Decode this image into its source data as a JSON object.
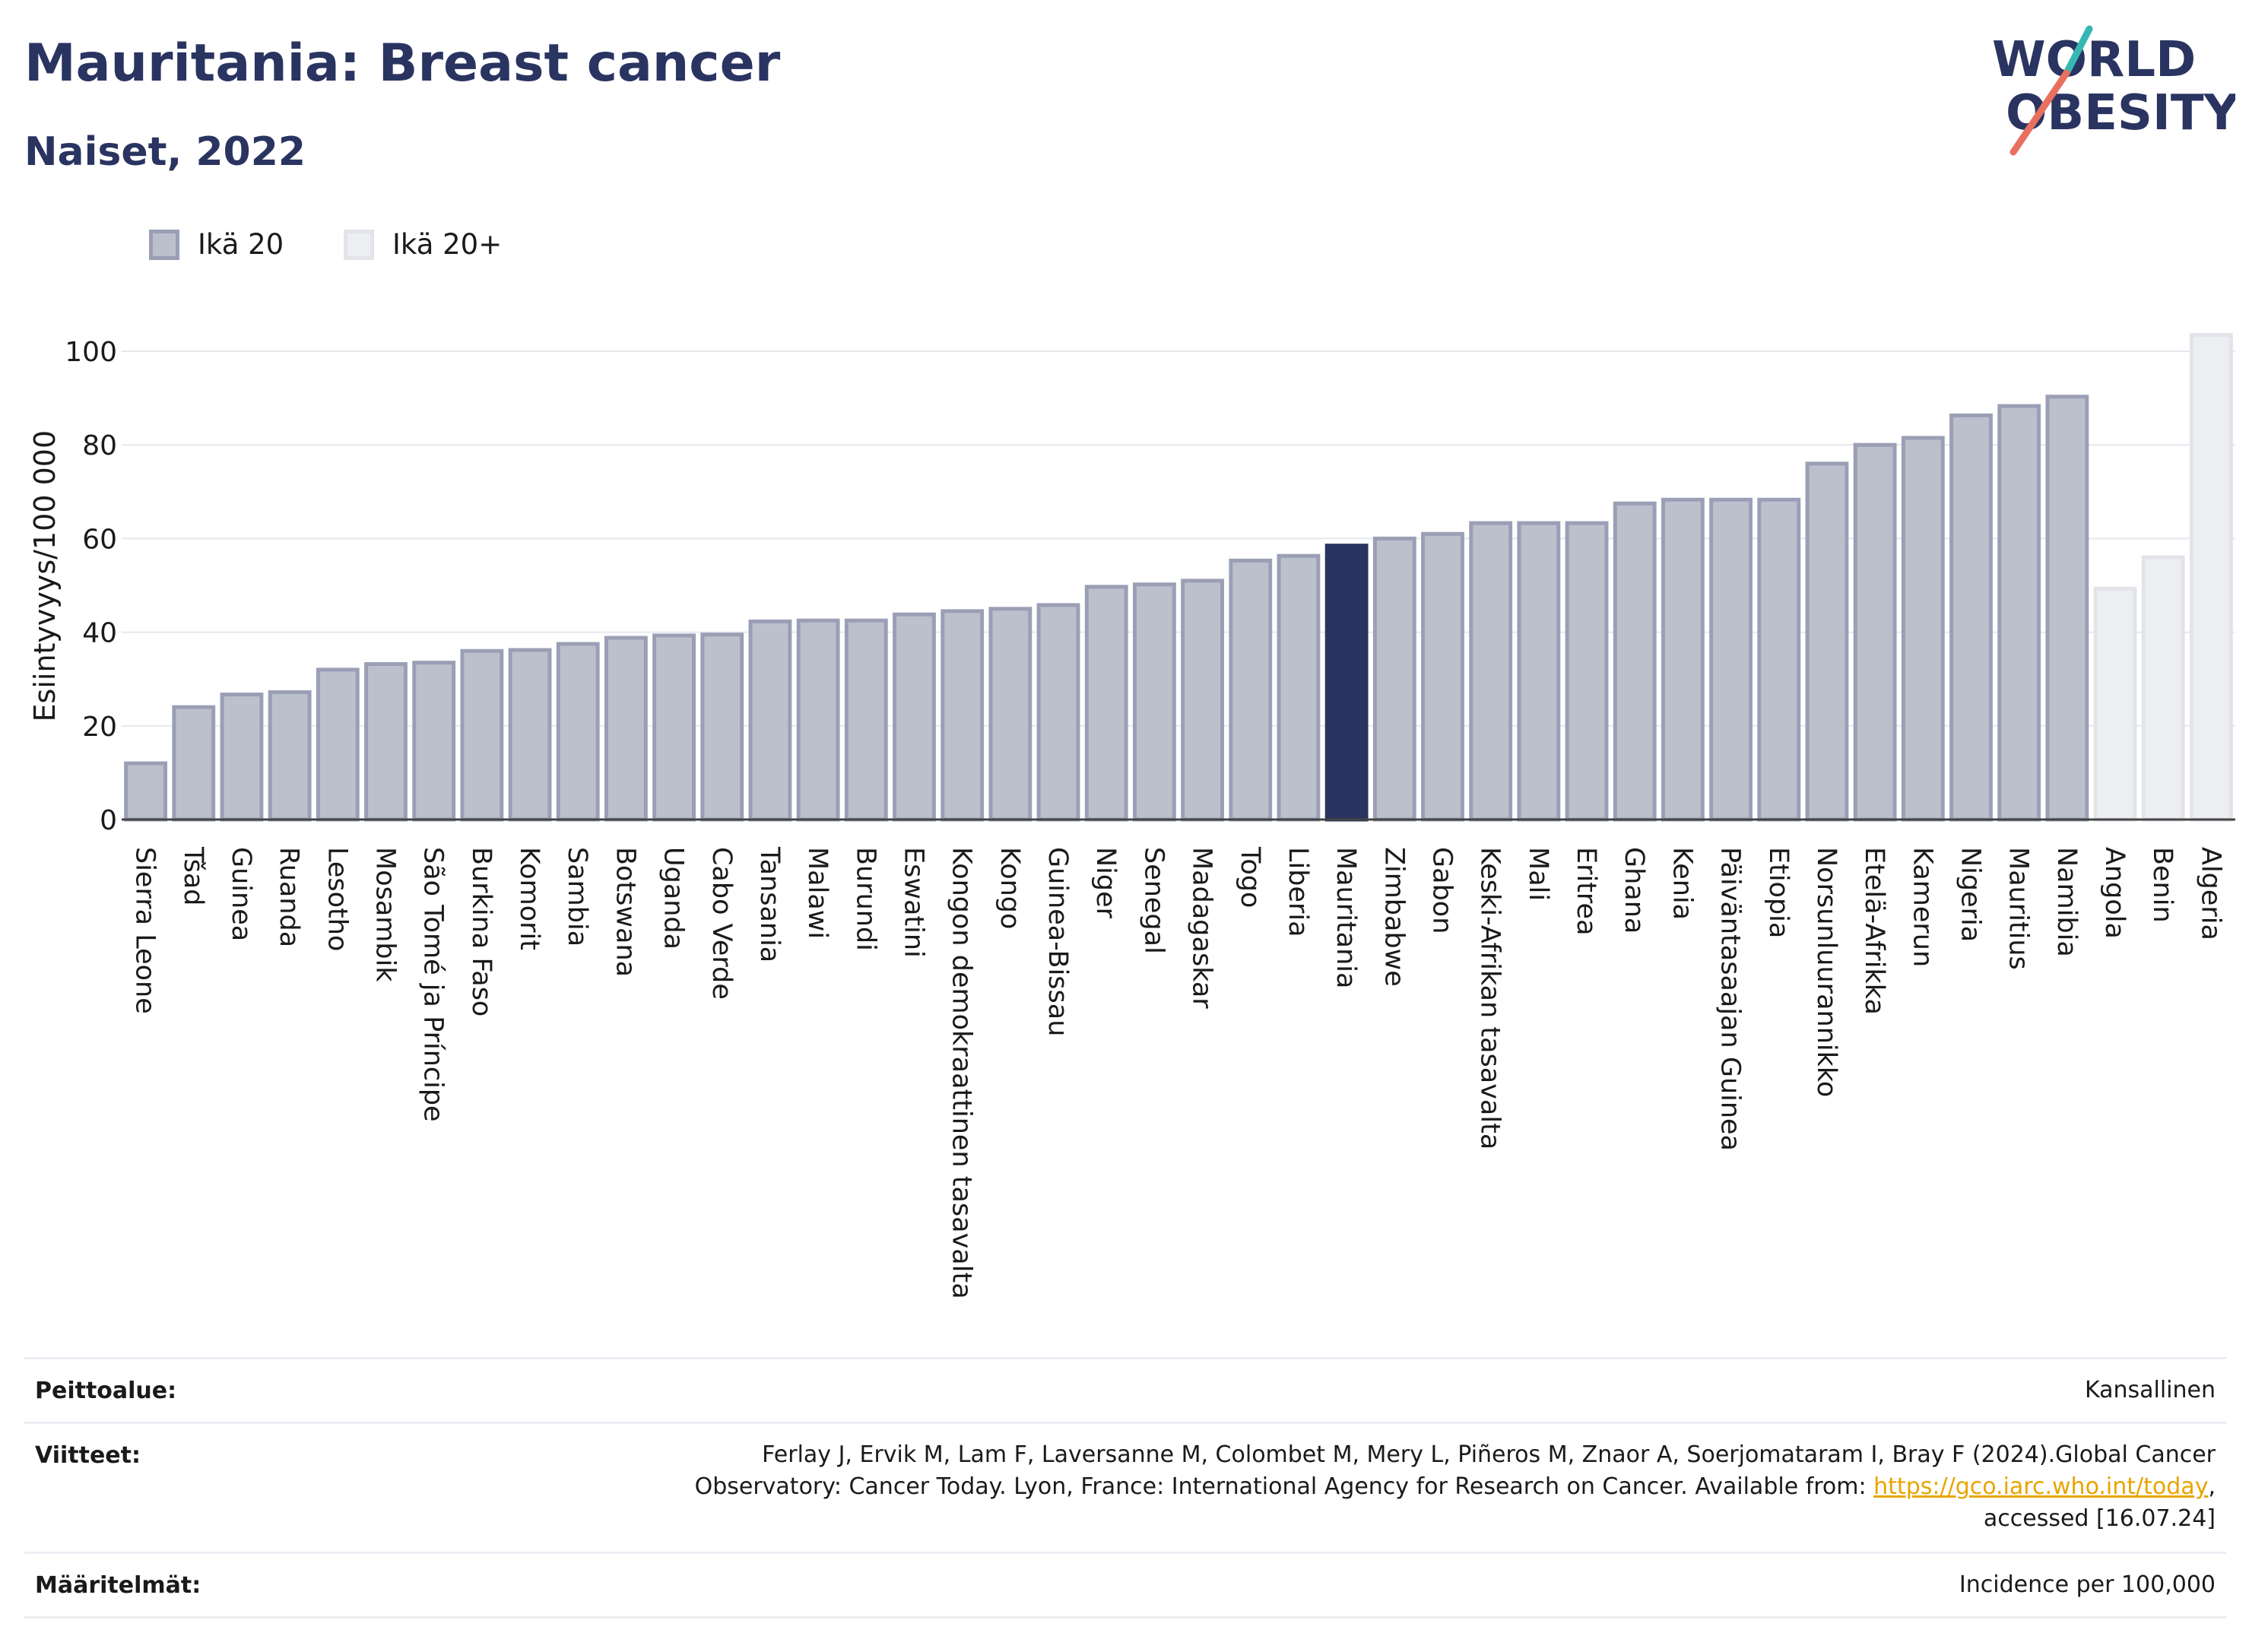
{
  "header": {
    "title": "Mauritania: Breast cancer",
    "subtitle": "Naiset, 2022"
  },
  "logo": {
    "line1": "WORLD",
    "line2": "OBESITY"
  },
  "colors": {
    "primary": "#2a3461",
    "bar_fill": "#bcc0cd",
    "bar_stroke": "#9a9fb5",
    "bar_light_fill": "#edeef2",
    "bar_light_stroke": "#e2e4ea",
    "logo_teal": "#35b8b4",
    "logo_coral": "#e8705f",
    "link": "#e8a500"
  },
  "legend": [
    {
      "label": "Ikä 20",
      "swatch": "dark"
    },
    {
      "label": "Ikä 20+",
      "swatch": "light"
    }
  ],
  "chart_data": {
    "type": "bar",
    "ylabel": "Esiintyvyys/100 000",
    "ylim": [
      0,
      105
    ],
    "yticks": [
      0,
      20,
      40,
      60,
      80,
      100
    ],
    "grid": true,
    "legend_position": "top-left",
    "highlight": "Mauritania",
    "categories": [
      "Sierra Leone",
      "Tšad",
      "Guinea",
      "Ruanda",
      "Lesotho",
      "Mosambik",
      "São Tomé ja Príncipe",
      "Burkina Faso",
      "Komorit",
      "Sambia",
      "Botswana",
      "Uganda",
      "Cabo Verde",
      "Tansania",
      "Malawi",
      "Burundi",
      "Eswatini",
      "Kongon demokraattinen tasavalta",
      "Kongo",
      "Guinea-Bissau",
      "Niger",
      "Senegal",
      "Madagaskar",
      "Togo",
      "Liberia",
      "Mauritania",
      "Zimbabwe",
      "Gabon",
      "Keski-Afrikan tasavalta",
      "Mali",
      "Eritrea",
      "Ghana",
      "Kenia",
      "Päiväntasaajan Guinea",
      "Etiopia",
      "Norsunluurannikko",
      "Etelä-Afrikka",
      "Kamerun",
      "Nigeria",
      "Mauritius",
      "Namibia",
      "Angola",
      "Benin",
      "Algeria"
    ],
    "values": [
      12,
      24,
      26.7,
      27.2,
      32,
      33.2,
      33.5,
      36,
      36.2,
      37.5,
      38.8,
      39.3,
      39.5,
      42.3,
      42.5,
      42.5,
      43.8,
      44.5,
      45,
      45.8,
      49.7,
      50.2,
      51,
      55.3,
      56.3,
      58.5,
      60,
      61,
      63.3,
      63.3,
      63.3,
      67.5,
      68.3,
      68.3,
      68.3,
      76,
      80,
      81.5,
      86.3,
      88.3,
      90.3,
      49.3,
      56,
      103.5
    ],
    "series_group": [
      "Ikä 20",
      "Ikä 20",
      "Ikä 20",
      "Ikä 20",
      "Ikä 20",
      "Ikä 20",
      "Ikä 20",
      "Ikä 20",
      "Ikä 20",
      "Ikä 20",
      "Ikä 20",
      "Ikä 20",
      "Ikä 20",
      "Ikä 20",
      "Ikä 20",
      "Ikä 20",
      "Ikä 20",
      "Ikä 20",
      "Ikä 20",
      "Ikä 20",
      "Ikä 20",
      "Ikä 20",
      "Ikä 20",
      "Ikä 20",
      "Ikä 20",
      "Ikä 20",
      "Ikä 20",
      "Ikä 20",
      "Ikä 20",
      "Ikä 20",
      "Ikä 20",
      "Ikä 20",
      "Ikä 20",
      "Ikä 20",
      "Ikä 20",
      "Ikä 20",
      "Ikä 20",
      "Ikä 20",
      "Ikä 20",
      "Ikä 20",
      "Ikä 20",
      "Ikä 20+",
      "Ikä 20+",
      "Ikä 20+"
    ]
  },
  "footer": {
    "coverage_label": "Peittoalue:",
    "coverage_value": "Kansallinen",
    "references_label": "Viitteet:",
    "references_line1": "Ferlay J, Ervik M, Lam F, Laversanne M, Colombet M, Mery L, Piñeros M, Znaor A, Soerjomataram I, Bray F (2024).Global Cancer",
    "references_line2_pre": "Observatory: Cancer Today. Lyon, France: International Agency for Research on Cancer. Available from: ",
    "references_link": "https://gco.iarc.who.int/today",
    "references_line2_post": ",",
    "references_line3": "accessed [16.07.24]",
    "definitions_label": "Määritelmät:",
    "definitions_value": "Incidence per 100,000"
  }
}
